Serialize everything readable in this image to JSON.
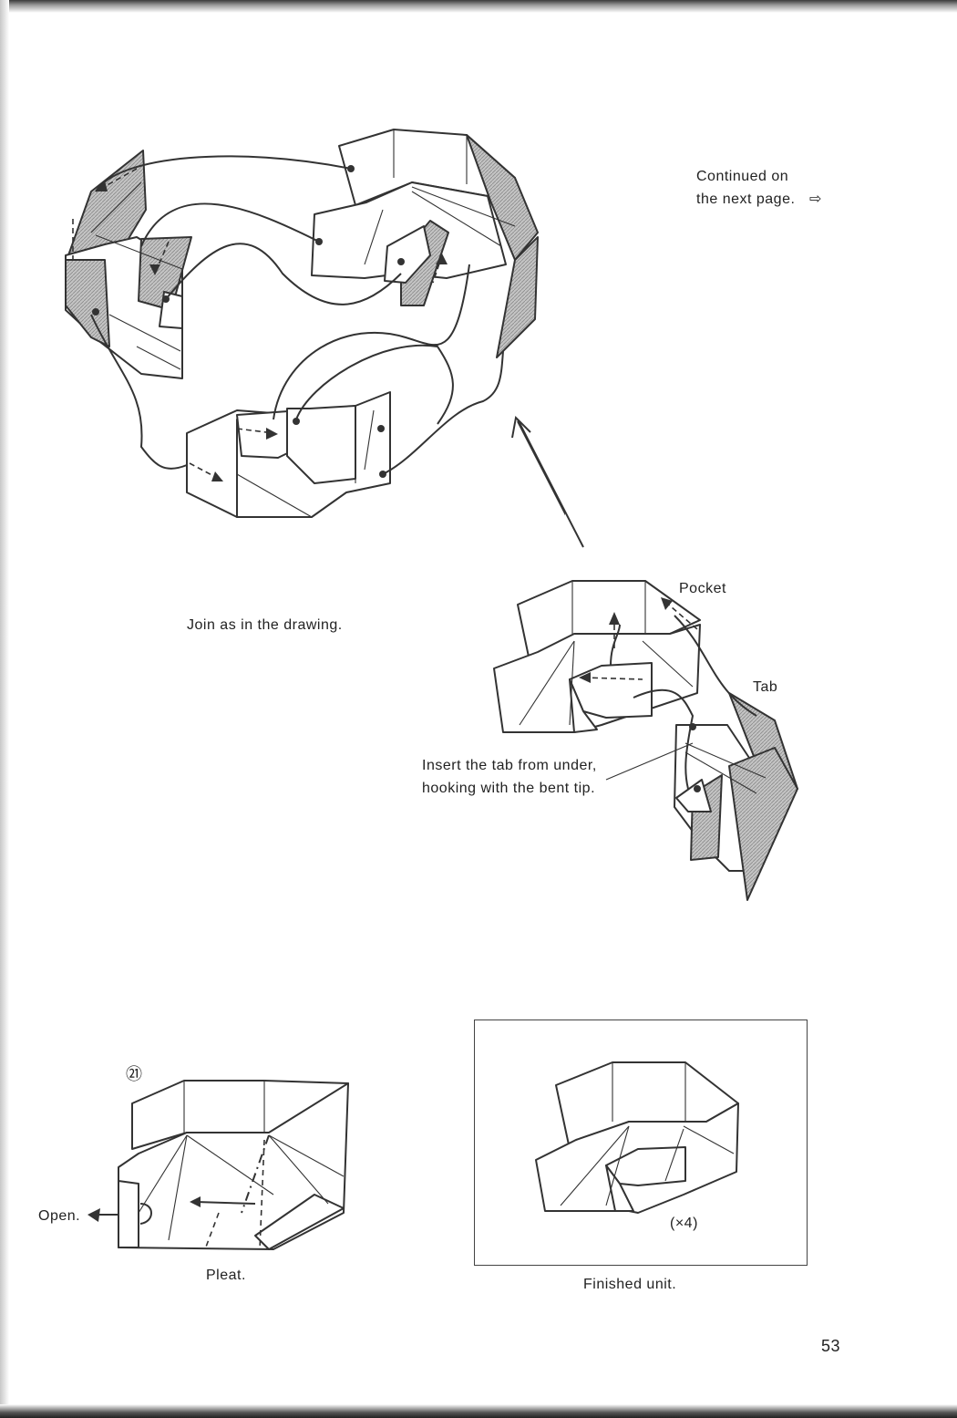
{
  "continued_note": {
    "line1": "Continued on",
    "line2": "the next page.",
    "arrow_icon": "⇨"
  },
  "join_caption": "Join as in the drawing.",
  "labels": {
    "pocket": "Pocket",
    "tab": "Tab"
  },
  "insert_note": {
    "line1": "Insert the tab from under,",
    "line2": "hooking with the bent tip."
  },
  "step": {
    "number": "㉑",
    "open_label": "Open.",
    "pleat_label": "Pleat."
  },
  "finished": {
    "multiplier": "(×4)",
    "caption": "Finished unit."
  },
  "page_number": "53",
  "colors": {
    "shade": "#b8b8b8",
    "line": "#333333"
  }
}
